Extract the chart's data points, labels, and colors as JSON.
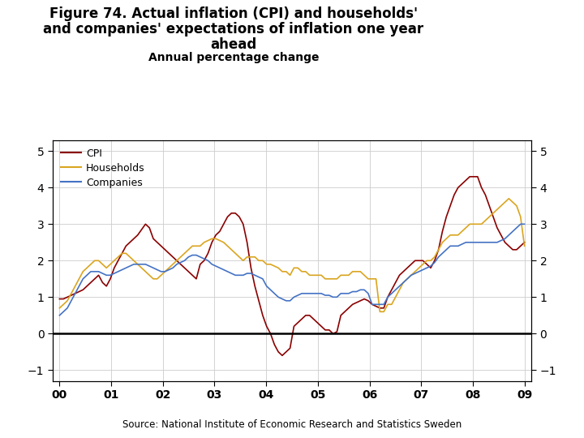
{
  "title_line1": "Figure 74. Actual inflation (CPI) and households'",
  "title_line2": "and companies' expectations of inflation one year",
  "title_line3": "ahead",
  "subtitle": "Annual percentage change",
  "source": "Source: National Institute of Economic Research and Statistics Sweden",
  "ylim": [
    -1.3,
    5.3
  ],
  "yticks": [
    -1,
    0,
    1,
    2,
    3,
    4,
    5
  ],
  "xlabel_ticks": [
    "00",
    "01",
    "02",
    "03",
    "04",
    "05",
    "06",
    "07",
    "08",
    "09"
  ],
  "colors": {
    "CPI": "#8B0000",
    "Households": "#DAA520",
    "Companies": "#4472C4"
  },
  "legend_labels": [
    "CPI",
    "Households",
    "Companies"
  ],
  "background_color": "#FFFFFF",
  "grid_color": "#CCCCCC",
  "bottom_bar_color": "#1F3864",
  "CPI": [
    0.95,
    0.95,
    1.0,
    1.05,
    1.1,
    1.15,
    1.2,
    1.3,
    1.4,
    1.5,
    1.6,
    1.4,
    1.3,
    1.5,
    1.8,
    2.0,
    2.2,
    2.4,
    2.5,
    2.6,
    2.7,
    2.85,
    3.0,
    2.9,
    2.6,
    2.5,
    2.4,
    2.3,
    2.2,
    2.1,
    2.0,
    1.9,
    1.8,
    1.7,
    1.6,
    1.5,
    1.9,
    2.0,
    2.2,
    2.5,
    2.7,
    2.8,
    3.0,
    3.2,
    3.3,
    3.3,
    3.2,
    3.0,
    2.5,
    1.8,
    1.3,
    0.9,
    0.5,
    0.2,
    0.0,
    -0.3,
    -0.5,
    -0.6,
    -0.5,
    -0.4,
    0.2,
    0.3,
    0.4,
    0.5,
    0.5,
    0.4,
    0.3,
    0.2,
    0.1,
    0.1,
    0.0,
    0.05,
    0.5,
    0.6,
    0.7,
    0.8,
    0.85,
    0.9,
    0.95,
    0.9,
    0.8,
    0.75,
    0.7,
    0.7,
    1.0,
    1.2,
    1.4,
    1.6,
    1.7,
    1.8,
    1.9,
    2.0,
    2.0,
    2.0,
    1.9,
    1.8,
    2.0,
    2.3,
    2.8,
    3.2,
    3.5,
    3.8,
    4.0,
    4.1,
    4.2,
    4.3,
    4.3,
    4.3,
    4.0,
    3.8,
    3.5,
    3.2,
    2.9,
    2.7,
    2.5,
    2.4,
    2.3,
    2.3,
    2.4,
    2.5
  ],
  "Households": [
    0.7,
    0.8,
    0.9,
    1.1,
    1.3,
    1.5,
    1.7,
    1.8,
    1.9,
    2.0,
    2.0,
    1.9,
    1.8,
    1.9,
    2.0,
    2.1,
    2.2,
    2.2,
    2.1,
    2.0,
    1.9,
    1.8,
    1.7,
    1.6,
    1.5,
    1.5,
    1.6,
    1.7,
    1.8,
    1.9,
    2.0,
    2.1,
    2.2,
    2.3,
    2.4,
    2.4,
    2.4,
    2.5,
    2.55,
    2.6,
    2.6,
    2.55,
    2.5,
    2.4,
    2.3,
    2.2,
    2.1,
    2.0,
    2.1,
    2.1,
    2.1,
    2.0,
    2.0,
    1.9,
    1.9,
    1.85,
    1.8,
    1.7,
    1.7,
    1.6,
    1.8,
    1.8,
    1.7,
    1.7,
    1.6,
    1.6,
    1.6,
    1.6,
    1.5,
    1.5,
    1.5,
    1.5,
    1.6,
    1.6,
    1.6,
    1.7,
    1.7,
    1.7,
    1.6,
    1.5,
    1.5,
    1.5,
    0.6,
    0.6,
    0.8,
    0.8,
    1.0,
    1.2,
    1.4,
    1.5,
    1.6,
    1.7,
    1.8,
    1.9,
    2.0,
    2.0,
    2.1,
    2.3,
    2.5,
    2.6,
    2.7,
    2.7,
    2.7,
    2.8,
    2.9,
    3.0,
    3.0,
    3.0,
    3.0,
    3.1,
    3.2,
    3.3,
    3.4,
    3.5,
    3.6,
    3.7,
    3.6,
    3.5,
    3.2,
    2.4
  ],
  "Companies": [
    0.5,
    0.6,
    0.7,
    0.9,
    1.1,
    1.3,
    1.5,
    1.6,
    1.7,
    1.7,
    1.7,
    1.65,
    1.6,
    1.6,
    1.65,
    1.7,
    1.75,
    1.8,
    1.85,
    1.9,
    1.9,
    1.9,
    1.9,
    1.85,
    1.8,
    1.75,
    1.7,
    1.7,
    1.75,
    1.8,
    1.9,
    1.95,
    2.0,
    2.1,
    2.15,
    2.15,
    2.1,
    2.05,
    2.0,
    1.9,
    1.85,
    1.8,
    1.75,
    1.7,
    1.65,
    1.6,
    1.6,
    1.6,
    1.65,
    1.65,
    1.6,
    1.55,
    1.5,
    1.3,
    1.2,
    1.1,
    1.0,
    0.95,
    0.9,
    0.9,
    1.0,
    1.05,
    1.1,
    1.1,
    1.1,
    1.1,
    1.1,
    1.1,
    1.05,
    1.05,
    1.0,
    1.0,
    1.1,
    1.1,
    1.1,
    1.15,
    1.15,
    1.2,
    1.2,
    1.1,
    0.8,
    0.8,
    0.8,
    0.8,
    1.0,
    1.1,
    1.2,
    1.3,
    1.4,
    1.5,
    1.6,
    1.65,
    1.7,
    1.75,
    1.8,
    1.85,
    1.95,
    2.1,
    2.2,
    2.3,
    2.4,
    2.4,
    2.4,
    2.45,
    2.5,
    2.5,
    2.5,
    2.5,
    2.5,
    2.5,
    2.5,
    2.5,
    2.5,
    2.55,
    2.6,
    2.7,
    2.8,
    2.9,
    3.0,
    3.0
  ]
}
